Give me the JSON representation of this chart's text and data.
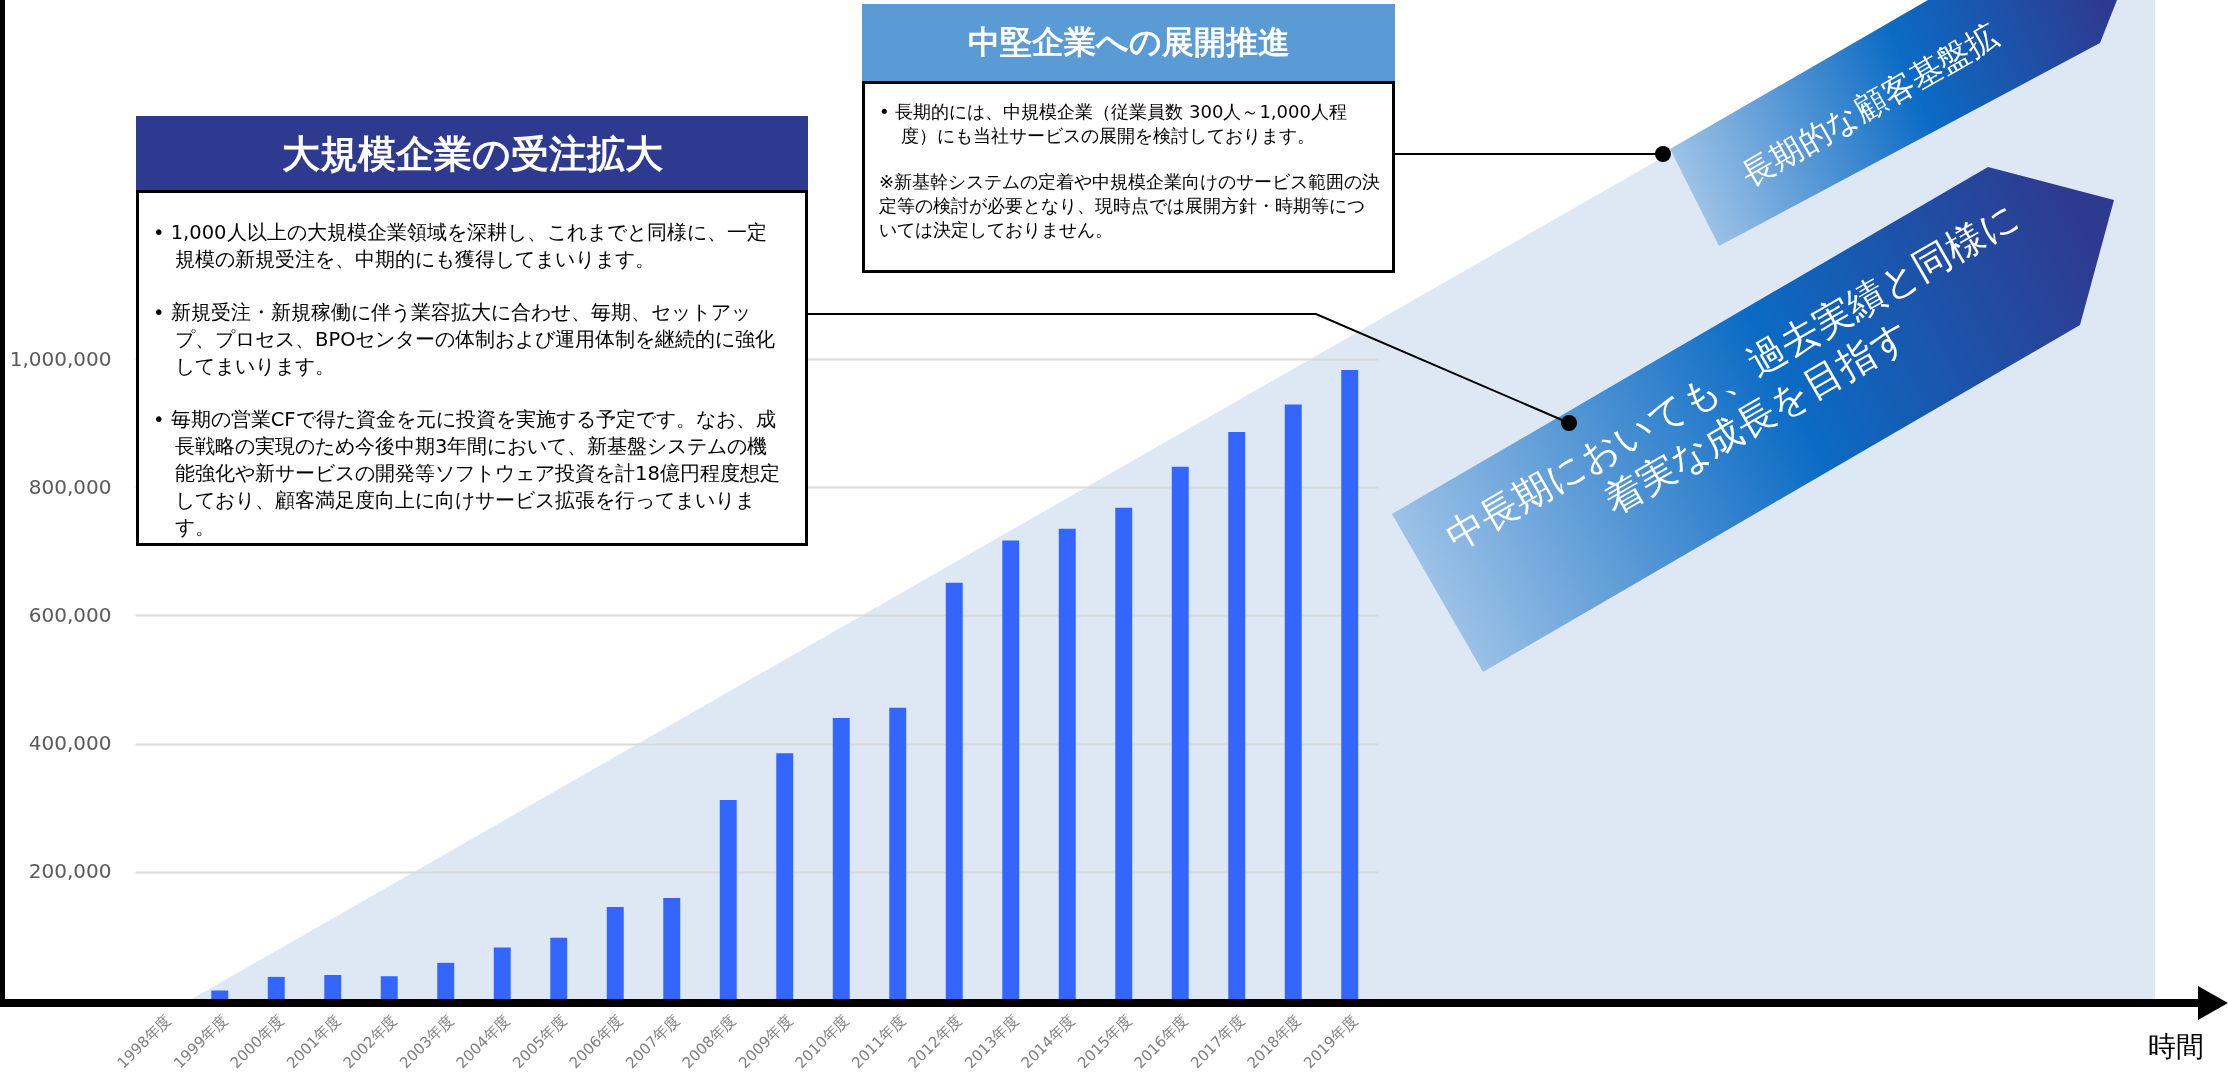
{
  "chart_data": {
    "type": "bar",
    "categories": [
      "1998年度",
      "1999年度",
      "2000年度",
      "2001年度",
      "2002年度",
      "2003年度",
      "2004年度",
      "2005年度",
      "2006年度",
      "2007年度",
      "2008年度",
      "2009年度",
      "2010年度",
      "2011年度",
      "2012年度",
      "2013年度",
      "2014年度",
      "2015年度",
      "2016年度",
      "2017年度",
      "2018年度",
      "2019年度"
    ],
    "values": [
      0,
      15000,
      36000,
      39000,
      37000,
      58000,
      82000,
      97000,
      145000,
      159000,
      312000,
      385000,
      440000,
      456000,
      651000,
      717000,
      735000,
      768000,
      832000,
      886000,
      929000,
      983000
    ],
    "color": "#3366ff",
    "ylim": [
      0,
      1000000
    ],
    "yticks": [
      {
        "value": 200000,
        "label": "200,000"
      },
      {
        "value": 400000,
        "label": "400,000"
      },
      {
        "value": 600000,
        "label": "600,000"
      },
      {
        "value": 800000,
        "label": "800,000"
      },
      {
        "value": 1000000,
        "label": "1,000,000"
      }
    ],
    "grid": "y",
    "annotations": [
      "大規模企業の受注拡大",
      "• 1,000人以上の大規模企業領域を深耕し、これまでと同様に、一定規模の新規受注を、中期的にも獲得してまいります。",
      "• 新規受注・新規稼働に伴う業容拡大に合わせ、毎期、セットアップ、プロセス、BPOセンターの体制および運用体制を継続的に強化してまいります。",
      "• 毎期の営業CFで得た資金を元に投資を実施する予定です。なお、成長戦略の実現のため今後中期3年間において、新基盤システムの機能強化や新サービスの開発等ソフトウェア投資を計18億円程度想定しており、顧客満足度向上に向けサービス拡張を行ってまいります。",
      "中堅企業への展開推進",
      "• 長期的には、中規模企業（従業員数 300人～1,000人程度）にも当社サービスの展開を検討しております。",
      "※新基幹システムの定着や中規模企業向けのサービス範囲の決定等の検討が必要となり、現時点では展開方針・時期等については決定しておりません。",
      "長期的な顧客基盤拡",
      "中長期においても、過去実績と同様に着実な成長を目指す",
      "時間"
    ]
  }
}
